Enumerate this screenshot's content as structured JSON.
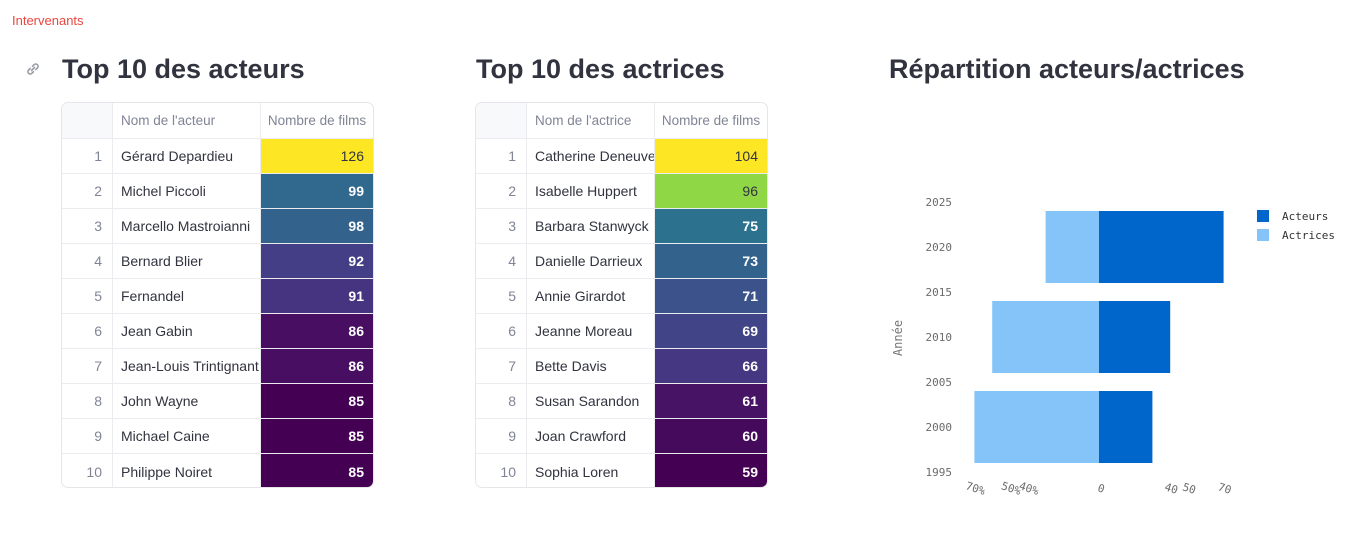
{
  "breadcrumb": "Intervenants",
  "link_icon": "link-icon",
  "actors": {
    "title": "Top 10 des acteurs",
    "col_name": "Nom de l'acteur",
    "col_films": "Nombre de films",
    "rows": [
      {
        "idx": "1",
        "name": "Gérard Depardieu",
        "films": "126",
        "color": "#fde725"
      },
      {
        "idx": "2",
        "name": "Michel Piccoli",
        "films": "99",
        "color": "#31688e"
      },
      {
        "idx": "3",
        "name": "Marcello Mastroianni",
        "films": "98",
        "color": "#33638d"
      },
      {
        "idx": "4",
        "name": "Bernard Blier",
        "films": "92",
        "color": "#433e85"
      },
      {
        "idx": "5",
        "name": "Fernandel",
        "films": "91",
        "color": "#463480"
      },
      {
        "idx": "6",
        "name": "Jean Gabin",
        "films": "86",
        "color": "#470e61"
      },
      {
        "idx": "7",
        "name": "Jean-Louis Trintignant",
        "films": "86",
        "color": "#470e61"
      },
      {
        "idx": "8",
        "name": "John Wayne",
        "films": "85",
        "color": "#440154"
      },
      {
        "idx": "9",
        "name": "Michael Caine",
        "films": "85",
        "color": "#440154"
      },
      {
        "idx": "10",
        "name": "Philippe Noiret",
        "films": "85",
        "color": "#440154"
      }
    ]
  },
  "actresses": {
    "title": "Top 10 des actrices",
    "col_name": "Nom de l'actrice",
    "col_films": "Nombre de films",
    "rows": [
      {
        "idx": "1",
        "name": "Catherine Deneuve",
        "films": "104",
        "color": "#fde725"
      },
      {
        "idx": "2",
        "name": "Isabelle Huppert",
        "films": "96",
        "color": "#8fd744"
      },
      {
        "idx": "3",
        "name": "Barbara Stanwyck",
        "films": "75",
        "color": "#2c728e"
      },
      {
        "idx": "4",
        "name": "Danielle Darrieux",
        "films": "73",
        "color": "#33638d"
      },
      {
        "idx": "5",
        "name": "Annie Girardot",
        "films": "71",
        "color": "#3b528b"
      },
      {
        "idx": "6",
        "name": "Jeanne Moreau",
        "films": "69",
        "color": "#414487"
      },
      {
        "idx": "7",
        "name": "Bette Davis",
        "films": "66",
        "color": "#453781"
      },
      {
        "idx": "8",
        "name": "Susan Sarandon",
        "films": "61",
        "color": "#471365"
      },
      {
        "idx": "9",
        "name": "Joan Crawford",
        "films": "60",
        "color": "#460a5d"
      },
      {
        "idx": "10",
        "name": "Sophia Loren",
        "films": "59",
        "color": "#440154"
      }
    ]
  },
  "chart_title": "Répartition acteurs/actrices",
  "chart_data": {
    "type": "bar",
    "orientation": "horizontal-diverging",
    "ylabel": "Année",
    "y_ticks": [
      "1995",
      "2000",
      "2005",
      "2010",
      "2015",
      "2020",
      "2025"
    ],
    "ylim": [
      1995,
      2025
    ],
    "x_ticks_left": [
      "70%",
      "50%",
      "40%"
    ],
    "x_ticks_center": "0",
    "x_ticks_right": [
      "40",
      "50",
      "70"
    ],
    "xlim": [
      -70,
      70
    ],
    "categories": [
      "2000",
      "2010",
      "2020"
    ],
    "series": [
      {
        "name": "Acteurs",
        "color": "#0066cc",
        "values": [
          30,
          40,
          70
        ]
      },
      {
        "name": "Actrices",
        "color": "#85c4f8",
        "values": [
          70,
          60,
          30
        ]
      }
    ],
    "legend": "top-right",
    "grid": false
  }
}
